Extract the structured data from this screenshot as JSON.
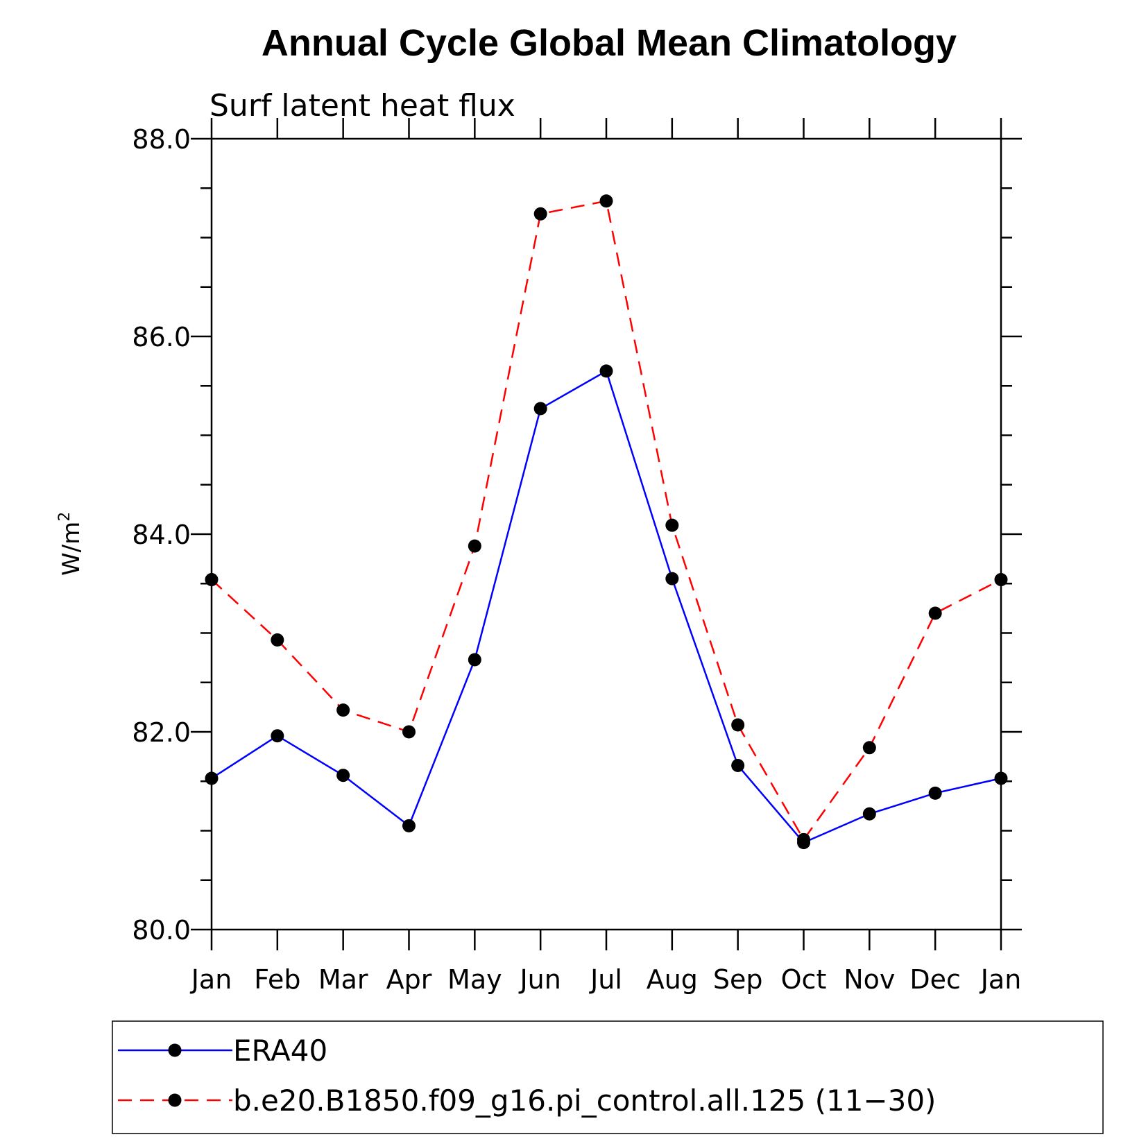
{
  "chart_data": {
    "type": "line",
    "title": "Annual Cycle Global Mean Climatology",
    "subtitle": "Surf latent heat flux",
    "xlabel": "",
    "ylabel_main": "W/m",
    "ylabel_sup": "2",
    "categories": [
      "Jan",
      "Feb",
      "Mar",
      "Apr",
      "May",
      "Jun",
      "Jul",
      "Aug",
      "Sep",
      "Oct",
      "Nov",
      "Dec",
      "Jan"
    ],
    "ylim": [
      80.0,
      88.0
    ],
    "yticks": [
      "80.0",
      "82.0",
      "84.0",
      "86.0",
      "88.0"
    ],
    "grid": false,
    "legend_position": "bottom",
    "series": [
      {
        "name": "ERA40",
        "color": "#0000ff",
        "style": "solid",
        "marker": "filled-circle",
        "values": [
          81.53,
          81.96,
          81.56,
          81.05,
          82.73,
          85.27,
          85.65,
          83.55,
          81.66,
          80.88,
          81.17,
          81.38,
          81.53
        ]
      },
      {
        "name": "b.e20.B1850.f09_g16.pi_control.all.125 (11−30)",
        "color": "#ff0000",
        "style": "dashed",
        "marker": "filled-circle",
        "values": [
          83.54,
          82.93,
          82.22,
          82.0,
          83.88,
          87.24,
          87.37,
          84.09,
          82.07,
          80.91,
          81.84,
          83.2,
          83.54
        ]
      }
    ]
  }
}
